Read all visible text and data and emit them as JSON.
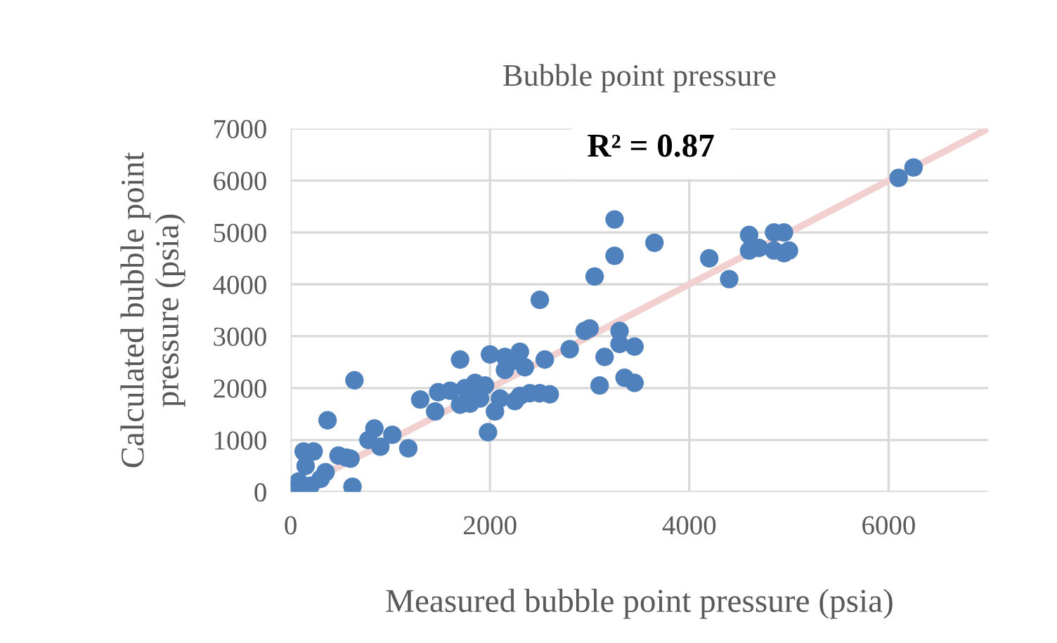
{
  "chart_data": {
    "type": "scatter",
    "title": "Bubble point pressure",
    "xlabel": "Measured bubble point pressure (psia)",
    "ylabel": "Calculated bubble point\npressure (psia)",
    "annotations": [
      "R² = 0.87"
    ],
    "xlim": [
      0,
      7000
    ],
    "xticks": [
      0,
      2000,
      4000,
      6000
    ],
    "ylim": [
      0,
      7000
    ],
    "yticks": [
      0,
      1000,
      2000,
      3000,
      4000,
      5000,
      6000,
      7000
    ],
    "grid": true,
    "marker": "circle",
    "series": [
      {
        "color": "#4f81bd",
        "x": [
          50,
          200,
          150,
          80,
          130,
          230,
          350,
          300,
          370,
          480,
          560,
          600,
          620,
          640,
          780,
          840,
          900,
          1020,
          1180,
          1300,
          1450,
          1480,
          1600,
          1700,
          1700,
          1750,
          1850,
          1900,
          1950,
          1800,
          1980,
          2000,
          2050,
          2100,
          2150,
          2150,
          2200,
          2250,
          2300,
          2300,
          2350,
          2400,
          2500,
          2550,
          2600,
          2500,
          2800,
          2950,
          3000,
          3050,
          3100,
          3150,
          3250,
          3250,
          3300,
          3300,
          3350,
          3450,
          3450,
          3650,
          4200,
          4400,
          4600,
          4600,
          4700,
          4850,
          4850,
          4950,
          4950,
          5000,
          6100,
          6250
        ],
        "values": [
          60,
          120,
          500,
          200,
          780,
          780,
          380,
          250,
          1380,
          700,
          660,
          640,
          100,
          2150,
          1000,
          1220,
          870,
          1100,
          840,
          1780,
          1550,
          1920,
          1950,
          2550,
          1680,
          2000,
          2100,
          1800,
          2050,
          1700,
          1150,
          2650,
          1550,
          1800,
          2600,
          2350,
          2500,
          1750,
          2700,
          1850,
          2400,
          1900,
          1900,
          2550,
          1880,
          3700,
          2750,
          3100,
          3150,
          4150,
          2050,
          2600,
          4550,
          5250,
          2850,
          3100,
          2200,
          2100,
          2800,
          4800,
          4500,
          4100,
          4950,
          4650,
          4700,
          5000,
          4650,
          5000,
          4600,
          4650,
          6050,
          6250
        ]
      },
      {
        "type": "line",
        "color": "#f2d0d0",
        "marker": "none",
        "x": [
          0,
          7000
        ],
        "values": [
          0,
          7000
        ]
      }
    ]
  }
}
